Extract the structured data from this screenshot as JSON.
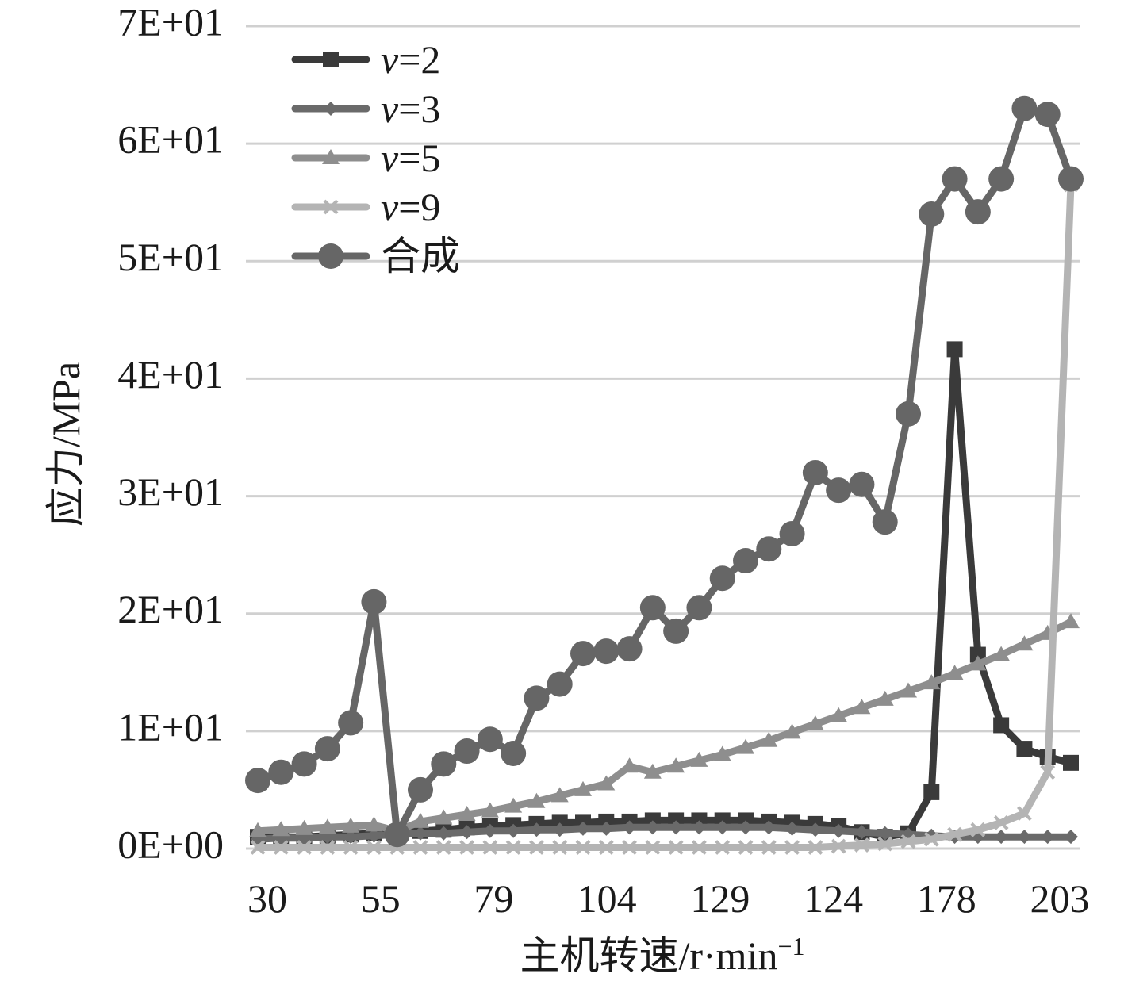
{
  "chart_data": {
    "type": "line",
    "title": "",
    "xlabel": "主机转速/r·min",
    "xlabel_sup": "−1",
    "ylabel": "应力/MPa",
    "ylim": [
      0,
      70
    ],
    "yticks": [
      0,
      10,
      20,
      30,
      40,
      50,
      60,
      70
    ],
    "ytick_labels": [
      "0E+00",
      "1E+01",
      "2E+01",
      "3E+01",
      "4E+01",
      "5E+01",
      "6E+01",
      "7E+01"
    ],
    "x_tick_labels": [
      "30",
      "55",
      "79",
      "104",
      "129",
      "124",
      "178",
      "203"
    ],
    "grid": true,
    "legend_position": "top-left",
    "n_points": 36,
    "series": [
      {
        "legend_var": "v",
        "legend_suffix": "=2",
        "color": "#3a3a3a",
        "marker": "square",
        "values": [
          1.0,
          1.0,
          1.0,
          1.1,
          1.2,
          1.3,
          1.4,
          1.5,
          1.6,
          1.8,
          1.9,
          2.0,
          2.1,
          2.2,
          2.2,
          2.3,
          2.3,
          2.4,
          2.4,
          2.4,
          2.4,
          2.4,
          2.3,
          2.2,
          2.1,
          1.9,
          1.4,
          1.0,
          1.3,
          4.8,
          42.5,
          16.5,
          10.5,
          8.5,
          7.8,
          7.3
        ]
      },
      {
        "legend_var": "v",
        "legend_suffix": "=3",
        "color": "#6a6a6a",
        "marker": "diamond",
        "values": [
          0.8,
          0.9,
          0.9,
          1.0,
          1.0,
          1.1,
          1.2,
          1.3,
          1.3,
          1.4,
          1.5,
          1.5,
          1.6,
          1.6,
          1.7,
          1.7,
          1.8,
          1.8,
          1.8,
          1.8,
          1.8,
          1.8,
          1.8,
          1.7,
          1.6,
          1.5,
          1.4,
          1.3,
          1.2,
          1.1,
          1.0,
          1.0,
          1.0,
          1.0,
          1.0,
          1.0
        ]
      },
      {
        "legend_var": "v",
        "legend_suffix": "=5",
        "color": "#8e8e8e",
        "marker": "triangle",
        "values": [
          1.5,
          1.6,
          1.7,
          1.8,
          1.9,
          2.0,
          1.5,
          2.3,
          2.6,
          2.9,
          3.2,
          3.6,
          4.0,
          4.5,
          5.0,
          5.5,
          7.0,
          6.5,
          7.0,
          7.5,
          8.0,
          8.6,
          9.2,
          9.9,
          10.6,
          11.3,
          12.0,
          12.7,
          13.4,
          14.1,
          14.9,
          15.7,
          16.5,
          17.4,
          18.3,
          19.3
        ]
      },
      {
        "legend_var": "v",
        "legend_suffix": "=9",
        "color": "#b4b4b4",
        "marker": "x",
        "values": [
          0.1,
          0.1,
          0.1,
          0.1,
          0.1,
          0.1,
          0.1,
          0.1,
          0.1,
          0.1,
          0.1,
          0.1,
          0.1,
          0.1,
          0.1,
          0.1,
          0.1,
          0.1,
          0.1,
          0.1,
          0.1,
          0.1,
          0.1,
          0.1,
          0.1,
          0.2,
          0.3,
          0.4,
          0.6,
          0.8,
          1.2,
          1.6,
          2.2,
          3.0,
          6.5,
          56.5
        ]
      },
      {
        "legend_var": "",
        "legend_suffix": "合成",
        "color": "#666666",
        "marker": "circle",
        "values": [
          5.8,
          6.5,
          7.2,
          8.5,
          10.7,
          21.0,
          1.2,
          5.0,
          7.2,
          8.3,
          9.3,
          8.1,
          12.8,
          14.0,
          16.6,
          16.8,
          17.0,
          20.5,
          18.5,
          20.5,
          23.0,
          24.5,
          25.5,
          26.8,
          32.0,
          30.5,
          31.0,
          27.8,
          37.0,
          54.0,
          57.0,
          54.2,
          57.0,
          63.0,
          62.5,
          57.0
        ]
      }
    ]
  }
}
